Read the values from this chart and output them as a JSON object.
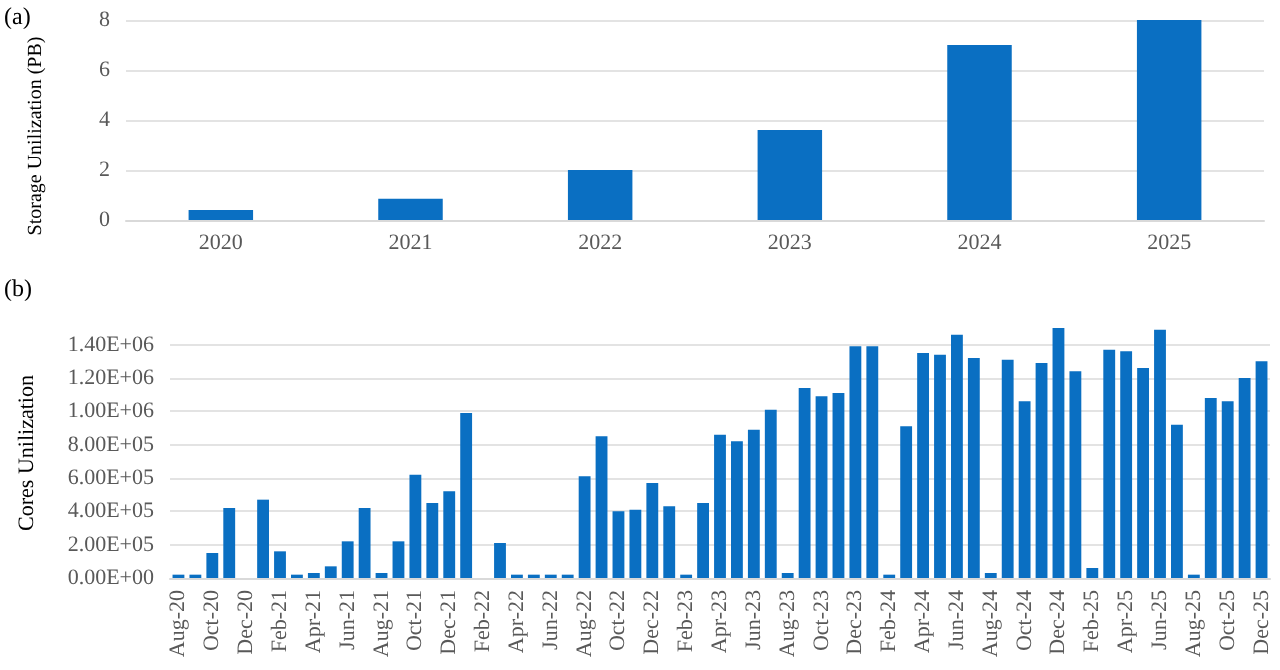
{
  "chart_data": [
    {
      "type": "bar",
      "annotations": [
        "(a)"
      ],
      "ylabel": "Storage Unilization (PB)",
      "categories": [
        "2020",
        "2021",
        "2022",
        "2023",
        "2024",
        "2025"
      ],
      "series": [
        {
          "color": "#0a6fc2",
          "values": [
            0.4,
            0.85,
            2.0,
            3.6,
            7.0,
            8.0
          ]
        }
      ],
      "ylim": [
        0,
        8
      ],
      "yticks": [
        0,
        2,
        4,
        6,
        8
      ],
      "grid": "y"
    },
    {
      "type": "bar",
      "annotations": [
        "(b)"
      ],
      "ylabel": "Cores Unilization",
      "categories": [
        "Aug-20",
        null,
        "Oct-20",
        null,
        "Dec-20",
        null,
        "Feb-21",
        null,
        "Apr-21",
        null,
        "Jun-21",
        null,
        "Aug-21",
        null,
        "Oct-21",
        null,
        "Dec-21",
        null,
        "Feb-22",
        null,
        "Apr-22",
        null,
        "Jun-22",
        null,
        "Aug-22",
        null,
        "Oct-22",
        null,
        "Dec-22",
        null,
        "Feb-23",
        null,
        "Apr-23",
        null,
        "Jun-23",
        null,
        "Aug-23",
        null,
        "Oct-23",
        null,
        "Dec-23",
        null,
        "Feb-24",
        null,
        "Apr-24",
        null,
        "Jun-24",
        null,
        "Aug-24",
        null,
        "Oct-24",
        null,
        "Dec-24",
        null,
        "Feb-25",
        null,
        "Apr-25",
        null,
        "Jun-25",
        null,
        "Aug-25",
        null,
        "Oct-25",
        null,
        "Dec-25"
      ],
      "series": [
        {
          "color": "#0a6fc2",
          "values": [
            20000,
            20000,
            150000,
            420000,
            0,
            470000,
            160000,
            20000,
            30000,
            70000,
            220000,
            420000,
            30000,
            220000,
            620000,
            450000,
            520000,
            990000,
            0,
            210000,
            20000,
            20000,
            20000,
            20000,
            610000,
            850000,
            400000,
            410000,
            570000,
            430000,
            20000,
            450000,
            860000,
            820000,
            890000,
            1010000,
            30000,
            1140000,
            1090000,
            1110000,
            1390000,
            1390000,
            20000,
            910000,
            1350000,
            1340000,
            1460000,
            1320000,
            30000,
            1310000,
            1060000,
            1290000,
            1500000,
            1240000,
            60000,
            1370000,
            1360000,
            1260000,
            1490000,
            920000,
            20000,
            1080000,
            1060000,
            1200000,
            1300000
          ]
        }
      ],
      "ylim": [
        0,
        1500000
      ],
      "yticks": [
        {
          "value": 0,
          "label": "0.00E+00"
        },
        {
          "value": 200000,
          "label": "2.00E+05"
        },
        {
          "value": 400000,
          "label": "4.00E+05"
        },
        {
          "value": 600000,
          "label": "6.00E+05"
        },
        {
          "value": 800000,
          "label": "8.00E+05"
        },
        {
          "value": 1000000,
          "label": "1.00E+06"
        },
        {
          "value": 1200000,
          "label": "1.20E+06"
        },
        {
          "value": 1400000,
          "label": "1.40E+06"
        }
      ],
      "grid": "y"
    }
  ]
}
